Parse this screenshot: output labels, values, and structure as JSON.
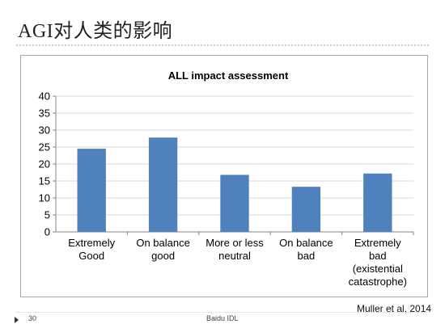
{
  "slide": {
    "title": "AGI对人类的影响",
    "citation": "Muller et al, 2014",
    "footer_page": "30",
    "footer_center": "Baidu IDL"
  },
  "colors": {
    "bar": "#4f81bd",
    "grid": "#d9d9d9",
    "axis": "#868686"
  },
  "chart_data": {
    "type": "bar",
    "title": "ALL impact assessment",
    "categories": [
      [
        "Extremely",
        "Good"
      ],
      [
        "On balance",
        "good"
      ],
      [
        "More or less",
        "neutral"
      ],
      [
        "On balance",
        "bad"
      ],
      [
        "Extremely",
        "bad",
        "(existential",
        "catastrophe)"
      ]
    ],
    "values": [
      24.5,
      27.8,
      16.8,
      13.3,
      17.2
    ],
    "ylim": [
      0,
      40
    ],
    "yticks": [
      0,
      5,
      10,
      15,
      20,
      25,
      30,
      35,
      40
    ],
    "grid": true,
    "legend": "none"
  }
}
